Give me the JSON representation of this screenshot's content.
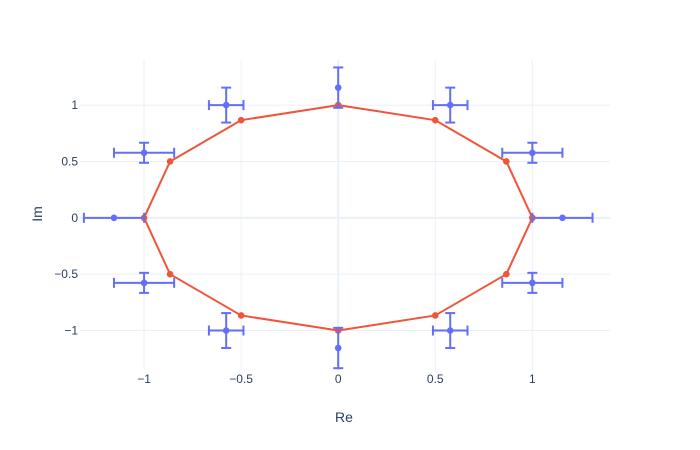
{
  "chart_data": {
    "type": "scatter",
    "title": "",
    "xlabel": "Re",
    "ylabel": "Im",
    "xlim": [
      -1.33,
      1.4
    ],
    "ylim": [
      -1.35,
      1.4
    ],
    "x_ticks": [
      -1,
      -0.5,
      0,
      0.5,
      1
    ],
    "x_tick_labels": [
      "−1",
      "−0.5",
      "0",
      "0.5",
      "1"
    ],
    "y_ticks": [
      -1,
      -0.5,
      0,
      0.5,
      1
    ],
    "y_tick_labels": [
      "−1",
      "−0.5",
      "0",
      "0.5",
      "1"
    ],
    "grid": true,
    "series": [
      {
        "mode": "lines+markers",
        "color": "#EF553B",
        "x": [
          1,
          0.866,
          0.5,
          0,
          -0.5,
          -0.866,
          -1,
          -0.866,
          -0.5,
          0,
          0.5,
          0.866,
          1
        ],
        "y": [
          0,
          0.5,
          0.866,
          1,
          0.866,
          0.5,
          0,
          -0.5,
          -0.866,
          -1,
          -0.866,
          -0.5,
          0
        ]
      },
      {
        "mode": "markers",
        "color": "#636EFA",
        "x": [
          1.155,
          1,
          0.577,
          0,
          -0.577,
          -1,
          -1.155,
          -1,
          -0.577,
          0,
          0.577,
          1
        ],
        "y": [
          0,
          0.577,
          1,
          1.155,
          1,
          0.577,
          0,
          -0.577,
          -1,
          -1.155,
          -1,
          -0.577
        ],
        "error_x": [
          0.155,
          0.155,
          0.089,
          0,
          0.089,
          0.155,
          0.155,
          0.155,
          0.089,
          0,
          0.089,
          0.155
        ],
        "error_y": [
          0,
          0.089,
          0.155,
          0.179,
          0.155,
          0.089,
          0,
          0.089,
          0.155,
          0.179,
          0.155,
          0.089
        ]
      }
    ]
  }
}
